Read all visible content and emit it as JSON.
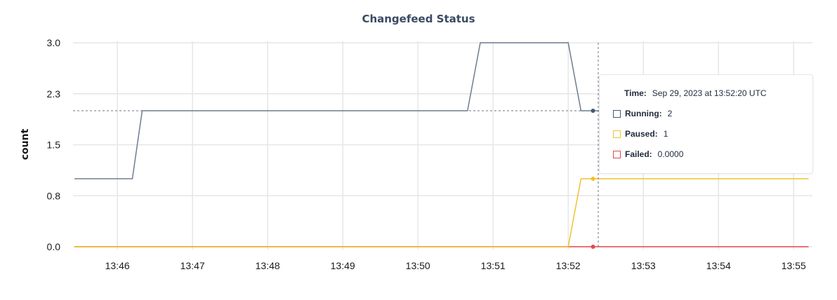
{
  "chart_data": {
    "type": "line",
    "title": "Changefeed Status",
    "xlabel": "",
    "ylabel": "count",
    "x_tick_labels": [
      "13:46",
      "13:47",
      "13:48",
      "13:49",
      "13:50",
      "13:51",
      "13:52",
      "13:53",
      "13:54",
      "13:55"
    ],
    "x_tick_minutes": [
      46,
      47,
      48,
      49,
      50,
      51,
      52,
      53,
      54,
      55
    ],
    "xlim_minutes": [
      45.41,
      55.25
    ],
    "y_tick_labels": [
      "3.0",
      "2.3",
      "1.5",
      "0.8",
      "0.0"
    ],
    "y_tick_values": [
      3.0,
      2.25,
      1.5,
      0.75,
      0.0
    ],
    "ylim": [
      0,
      3
    ],
    "grid": true,
    "series": [
      {
        "name": "Running",
        "color": "#6e7d92",
        "time_minutes": [
          45.43,
          46.2,
          46.33,
          50.66,
          50.83,
          52.0,
          52.17,
          52.5
        ],
        "values": [
          1,
          1,
          2,
          2,
          3,
          3,
          2,
          2
        ]
      },
      {
        "name": "Paused",
        "color": "#f2c12e",
        "time_minutes": [
          45.43,
          52.0,
          52.17,
          55.2
        ],
        "values": [
          0,
          0,
          1,
          1
        ]
      },
      {
        "name": "Failed",
        "color": "#e5484d",
        "time_minutes": [
          45.43,
          55.2
        ],
        "values": [
          0,
          0
        ]
      }
    ],
    "hover": {
      "time_minutes": 52.33,
      "crosshair_minutes": 52.4,
      "crosshair_value": 2
    }
  },
  "tooltip": {
    "time_label": "Time:",
    "time_value": "Sep 29, 2023 at 13:52:20 UTC",
    "rows": [
      {
        "label": "Running:",
        "value": "2",
        "color": "#475872"
      },
      {
        "label": "Paused:",
        "value": "1",
        "color": "#f2c12e"
      },
      {
        "label": "Failed:",
        "value": "0.0000",
        "color": "#e5484d"
      }
    ]
  }
}
